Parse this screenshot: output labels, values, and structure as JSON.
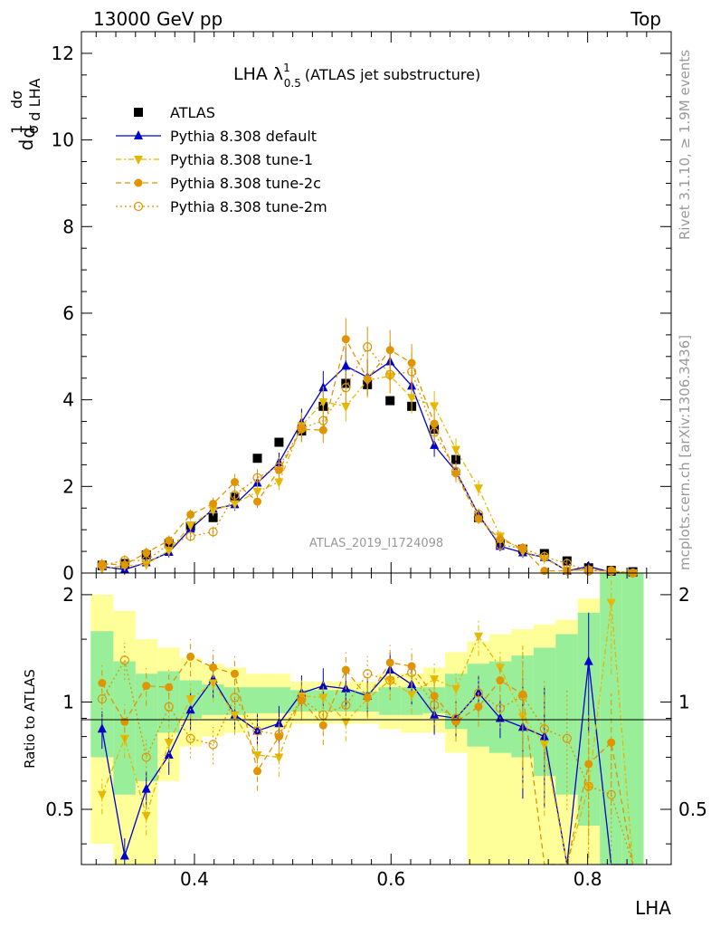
{
  "header": {
    "left": "13000 GeV pp",
    "right": "Top"
  },
  "side_labels": {
    "upper": "Rivet 3.1.10, ≥ 1.9M events",
    "lower": "mcplots.cern.ch [arXiv:1306.3436]"
  },
  "chart_data": {
    "type": "scatter",
    "title": "LHA λ¹₀.₅ (ATLAS jet substructure)",
    "title_main": "LHA λ",
    "title_sup": "1",
    "title_sub": "0.5",
    "title_rest": "(ATLAS jet substructure)",
    "analysis_id": "ATLAS_2019_I1724098",
    "xlabel": "LHA",
    "ylabel_main": "1/σ dσ/d LHA",
    "ylabel_ratio": "Ratio to ATLAS",
    "xlim": [
      0.285,
      0.885
    ],
    "ylim_main": [
      0,
      12.5
    ],
    "ylim_ratio": [
      0.35,
      2.3
    ],
    "x_ticks": [
      "0.4",
      "0.6",
      "0.8"
    ],
    "y_ticks_main": [
      "0",
      "2",
      "4",
      "6",
      "8",
      "10",
      "12"
    ],
    "y_ticks_ratio": [
      "0.5",
      "1",
      "2"
    ],
    "legend_position": "top-left",
    "x": [
      0.306,
      0.329,
      0.351,
      0.374,
      0.396,
      0.419,
      0.441,
      0.464,
      0.486,
      0.509,
      0.531,
      0.554,
      0.576,
      0.599,
      0.621,
      0.644,
      0.666,
      0.689,
      0.711,
      0.734,
      0.756,
      0.779,
      0.801,
      0.824,
      0.846
    ],
    "series": [
      {
        "name": "ATLAS",
        "color": "#000000",
        "marker": "square",
        "values": [
          0.18,
          0.22,
          0.42,
          0.68,
          1.08,
          1.28,
          1.75,
          2.65,
          3.02,
          3.28,
          3.85,
          4.38,
          4.35,
          3.98,
          3.85,
          3.32,
          2.62,
          1.28,
          0.68,
          0.55,
          0.45,
          0.28,
          0.12,
          0.06,
          0.03
        ]
      },
      {
        "name": "Pythia 8.308 default",
        "color": "#0000cc",
        "marker": "triangle-up",
        "values": [
          0.15,
          0.08,
          0.24,
          0.48,
          1.02,
          1.48,
          1.58,
          2.08,
          2.55,
          3.48,
          4.28,
          4.78,
          4.52,
          4.88,
          4.32,
          2.95,
          2.35,
          1.35,
          0.62,
          0.47,
          0.36,
          0.05,
          0.15,
          0.02,
          0.0
        ]
      },
      {
        "name": "Pythia 8.308 tune-1",
        "color": "#e6b800",
        "marker": "triangle-down",
        "values": [
          0.1,
          0.17,
          0.2,
          0.52,
          1.1,
          1.45,
          1.6,
          1.88,
          2.1,
          3.4,
          3.95,
          3.85,
          4.45,
          4.55,
          4.05,
          3.86,
          2.85,
          1.96,
          0.85,
          0.5,
          0.34,
          0.06,
          0.07,
          0.03,
          0.0
        ]
      },
      {
        "name": "Pythia 8.308 tune-2c",
        "color": "#e09400",
        "marker": "circle",
        "values": [
          0.21,
          0.19,
          0.47,
          0.75,
          1.35,
          1.6,
          2.1,
          1.65,
          2.38,
          3.32,
          3.3,
          5.4,
          4.48,
          5.15,
          4.85,
          3.45,
          2.3,
          1.25,
          0.78,
          0.57,
          0.05,
          0.05,
          0.08,
          0.05,
          0.0
        ]
      },
      {
        "name": "Pythia 8.308 tune-2m",
        "color": "#e09400",
        "marker": "circle-open",
        "values": [
          0.18,
          0.29,
          0.29,
          0.66,
          0.85,
          0.95,
          1.8,
          2.2,
          2.45,
          3.34,
          3.52,
          4.28,
          5.22,
          4.58,
          4.65,
          3.25,
          2.35,
          1.36,
          0.65,
          0.57,
          0.38,
          0.22,
          0.05,
          0.05,
          0.0
        ]
      }
    ],
    "ratio_series": [
      {
        "name": "Pythia 8.308 default",
        "values": [
          0.84,
          0.37,
          0.57,
          0.71,
          0.95,
          1.16,
          0.92,
          0.83,
          0.87,
          1.06,
          1.11,
          1.09,
          1.04,
          1.23,
          1.12,
          0.92,
          0.9,
          1.06,
          0.9,
          0.85,
          0.8,
          0.18,
          1.3,
          0.25,
          0.0
        ]
      },
      {
        "name": "Pythia 8.308 tune-1",
        "values": [
          0.55,
          0.79,
          0.48,
          0.77,
          1.02,
          1.13,
          0.92,
          0.71,
          0.7,
          1.04,
          1.03,
          0.88,
          1.02,
          1.15,
          1.05,
          1.16,
          1.09,
          1.53,
          1.25,
          0.91,
          0.76,
          0.21,
          0.58,
          1.9,
          0.0
        ]
      },
      {
        "name": "Pythia 8.308 tune-2c",
        "values": [
          1.13,
          0.88,
          1.11,
          1.1,
          1.34,
          1.25,
          1.2,
          0.64,
          0.8,
          1.01,
          0.86,
          1.23,
          1.03,
          1.29,
          1.26,
          1.04,
          0.88,
          0.97,
          1.15,
          1.05,
          0.12,
          0.18,
          0.67,
          0.77,
          0.0
        ]
      },
      {
        "name": "Pythia 8.308 tune-2m",
        "values": [
          1.02,
          1.31,
          0.7,
          0.97,
          0.79,
          0.76,
          1.03,
          0.83,
          0.81,
          1.02,
          0.92,
          0.98,
          1.2,
          1.15,
          1.21,
          0.98,
          0.9,
          1.06,
          0.96,
          1.04,
          0.84,
          0.79,
          0.58,
          0.55,
          0.0
        ]
      }
    ],
    "band_green": [
      [
        0.7,
        1.58
      ],
      [
        0.55,
        1.3
      ],
      [
        0.6,
        1.2
      ],
      [
        0.82,
        1.22
      ],
      [
        0.9,
        1.15
      ],
      [
        0.92,
        1.12
      ],
      [
        0.92,
        1.1
      ],
      [
        0.93,
        1.1
      ],
      [
        0.93,
        1.1
      ],
      [
        0.94,
        1.08
      ],
      [
        0.94,
        1.08
      ],
      [
        0.94,
        1.08
      ],
      [
        0.94,
        1.07
      ],
      [
        0.92,
        1.1
      ],
      [
        0.92,
        1.1
      ],
      [
        0.93,
        1.1
      ],
      [
        0.84,
        1.2
      ],
      [
        0.75,
        1.28
      ],
      [
        0.72,
        1.3
      ],
      [
        0.7,
        1.35
      ],
      [
        0.62,
        1.42
      ],
      [
        0.55,
        1.55
      ],
      [
        0.45,
        1.78
      ],
      [
        0.35,
        2.3
      ],
      [
        0.35,
        2.3
      ]
    ],
    "band_yellow": [
      [
        0.4,
        2.0
      ],
      [
        0.35,
        1.8
      ],
      [
        0.35,
        1.5
      ],
      [
        0.6,
        1.42
      ],
      [
        0.75,
        1.33
      ],
      [
        0.8,
        1.28
      ],
      [
        0.82,
        1.25
      ],
      [
        0.84,
        1.2
      ],
      [
        0.84,
        1.2
      ],
      [
        0.87,
        1.14
      ],
      [
        0.87,
        1.14
      ],
      [
        0.87,
        1.14
      ],
      [
        0.87,
        1.14
      ],
      [
        0.84,
        1.2
      ],
      [
        0.82,
        1.2
      ],
      [
        0.82,
        1.25
      ],
      [
        0.72,
        1.38
      ],
      [
        0.35,
        1.48
      ],
      [
        0.35,
        1.55
      ],
      [
        0.35,
        1.6
      ],
      [
        0.35,
        1.65
      ],
      [
        0.35,
        1.7
      ],
      [
        0.35,
        1.95
      ],
      [
        0.35,
        2.3
      ],
      [
        0.35,
        2.3
      ]
    ]
  }
}
